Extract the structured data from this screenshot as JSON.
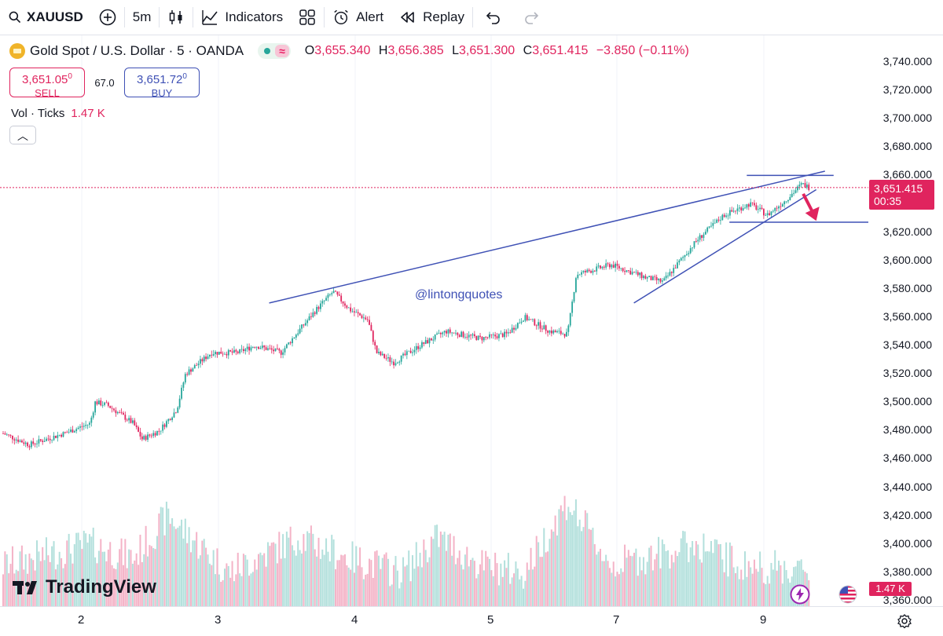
{
  "toolbar": {
    "symbol": "XAUUSD",
    "interval": "5m",
    "indicators_label": "Indicators",
    "alert_label": "Alert",
    "replay_label": "Replay"
  },
  "legend": {
    "title": "Gold Spot / U.S. Dollar · 5 · OANDA",
    "open_key": "O",
    "open": "3,655.340",
    "high_key": "H",
    "high": "3,656.385",
    "low_key": "L",
    "low": "3,651.300",
    "close_key": "C",
    "close": "3,651.415",
    "change": "−3.850 (−0.11%)"
  },
  "trade": {
    "sell_price": "3,651.05",
    "sell_sup": "0",
    "sell_label": "SELL",
    "spread": "67.0",
    "buy_price": "3,651.72",
    "buy_sup": "0",
    "buy_label": "BUY"
  },
  "volume": {
    "label": "Vol · Ticks",
    "value": "1.47 K"
  },
  "watermark": "@lintongquotes",
  "brand": "TradingView",
  "last_price": {
    "price": "3,651.415",
    "countdown": "00:35"
  },
  "volume_badge": "1.47 K",
  "colors": {
    "up": "#26a69a",
    "down": "#e0245e",
    "line": "#3f51b5",
    "accent": "#e0245e"
  },
  "chart_data": {
    "type": "candlestick",
    "price_axis": [
      "3,740.000",
      "3,720.000",
      "3,700.000",
      "3,680.000",
      "3,660.000",
      "3,640.000",
      "3,620.000",
      "3,600.000",
      "3,580.000",
      "3,560.000",
      "3,540.000",
      "3,520.000",
      "3,500.000",
      "3,480.000",
      "3,460.000",
      "3,440.000",
      "3,420.000",
      "3,400.000",
      "3,380.000",
      "3,360.000"
    ],
    "ylim": [
      3360,
      3740
    ],
    "time_axis": [
      "2",
      "3",
      "4",
      "5",
      "7",
      "9"
    ],
    "price_path": [
      [
        0,
        3478
      ],
      [
        0.03,
        3470
      ],
      [
        0.07,
        3478
      ],
      [
        0.1,
        3485
      ],
      [
        0.106,
        3500
      ],
      [
        0.12,
        3498
      ],
      [
        0.15,
        3485
      ],
      [
        0.16,
        3474
      ],
      [
        0.18,
        3480
      ],
      [
        0.2,
        3495
      ],
      [
        0.21,
        3520
      ],
      [
        0.24,
        3535
      ],
      [
        0.27,
        3535
      ],
      [
        0.29,
        3540
      ],
      [
        0.32,
        3535
      ],
      [
        0.34,
        3550
      ],
      [
        0.36,
        3565
      ],
      [
        0.38,
        3578
      ],
      [
        0.4,
        3565
      ],
      [
        0.42,
        3558
      ],
      [
        0.43,
        3535
      ],
      [
        0.45,
        3528
      ],
      [
        0.48,
        3540
      ],
      [
        0.51,
        3550
      ],
      [
        0.55,
        3545
      ],
      [
        0.58,
        3548
      ],
      [
        0.6,
        3560
      ],
      [
        0.63,
        3550
      ],
      [
        0.65,
        3548
      ],
      [
        0.66,
        3590
      ],
      [
        0.7,
        3597
      ],
      [
        0.74,
        3588
      ],
      [
        0.76,
        3585
      ],
      [
        0.8,
        3615
      ],
      [
        0.83,
        3632
      ],
      [
        0.86,
        3640
      ],
      [
        0.88,
        3632
      ],
      [
        0.9,
        3642
      ],
      [
        0.92,
        3654
      ],
      [
        0.93,
        3651
      ]
    ],
    "volume_path": [
      [
        0,
        3380
      ],
      [
        0.1,
        3395
      ],
      [
        0.15,
        3385
      ],
      [
        0.19,
        3415
      ],
      [
        0.26,
        3375
      ],
      [
        0.34,
        3400
      ],
      [
        0.4,
        3385
      ],
      [
        0.46,
        3375
      ],
      [
        0.5,
        3400
      ],
      [
        0.55,
        3380
      ],
      [
        0.6,
        3375
      ],
      [
        0.65,
        3425
      ],
      [
        0.7,
        3380
      ],
      [
        0.8,
        3395
      ],
      [
        0.85,
        3380
      ],
      [
        0.9,
        3378
      ],
      [
        0.93,
        3375
      ]
    ],
    "lines": [
      {
        "from": [
          0.31,
          3570
        ],
        "to": [
          0.95,
          3663
        ]
      },
      {
        "from": [
          0.73,
          3570
        ],
        "to": [
          0.94,
          3650
        ]
      },
      {
        "from": [
          0.86,
          3660
        ],
        "to": [
          0.96,
          3660
        ]
      },
      {
        "from": [
          0.84,
          3627
        ],
        "to": [
          1.0,
          3627
        ]
      }
    ],
    "arrow": {
      "from": [
        0.925,
        3647
      ],
      "to": [
        0.94,
        3628
      ]
    }
  }
}
